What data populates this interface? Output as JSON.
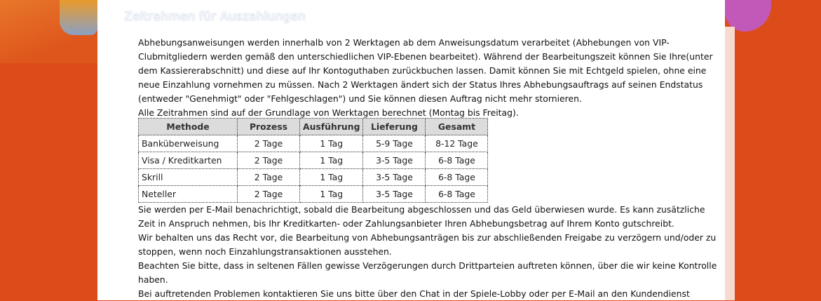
{
  "title": "Zeitrahmen für Auszahlungen",
  "intro": [
    "Abhebungsanweisungen werden innerhalb von 2 Werktagen ab dem Anweisungsdatum verarbeitet (Abhebungen von VIP-Clubmitgliedern werden gemäß den unterschiedlichen VIP-Ebenen bearbeitet). Während der Bearbeitungszeit können Sie Ihre(unter dem Kassiererabschnitt) und diese auf Ihr Kontoguthaben zurückbuchen lassen. Damit können Sie mit Echtgeld spielen, ohne eine neue Einzahlung vornehmen zu müssen. Nach 2 Werktagen ändert sich der Status Ihres Abhebungsauftrags auf seinen Endstatus (entweder \"Genehmigt\" oder \"Fehlgeschlagen\") und Sie können diesen Auftrag nicht mehr stornieren.",
    "Alle Zeitrahmen sind auf der Grundlage von Werktagen berechnet (Montag bis Freitag)."
  ],
  "table": {
    "headers": [
      "Methode",
      "Prozess",
      "Ausführung",
      "Lieferung",
      "Gesamt"
    ],
    "rows": [
      [
        "Banküberweisung",
        "2 Tage",
        "1 Tag",
        "5-9 Tage",
        "8-12 Tage"
      ],
      [
        "Visa / Kreditkarten",
        "2 Tage",
        "1 Tag",
        "3-5 Tage",
        "6-8 Tage"
      ],
      [
        "Skrill",
        "2 Tage",
        "1 Tag",
        "3-5 Tage",
        "6-8 Tage"
      ],
      [
        "Neteller",
        "2 Tage",
        "1 Tag",
        "3-5 Tage",
        "6-8 Tage"
      ]
    ]
  },
  "outro": [
    "Sie werden per E-Mail benachrichtigt, sobald die Bearbeitung abgeschlossen und das Geld überwiesen wurde. Es kann zusätzliche Zeit in Anspruch nehmen, bis Ihr Kreditkarten- oder Zahlungsanbieter Ihren Abhebungsbetrag auf Ihrem Konto gutschreibt.",
    "Wir behalten uns das Recht vor, die Bearbeitung von Abhebungsanträgen bis zur abschließenden Freigabe zu verzögern und/oder zu stoppen, wenn noch Einzahlungstransaktionen ausstehen.",
    "Beachten Sie bitte, dass in seltenen Fällen gewisse Verzögerungen durch Drittparteien auftreten können, über die wir keine Kontrolle haben.",
    "Bei auftretenden Problemen kontaktieren Sie uns bitte über den Chat in der Spiele-Lobby oder per E-Mail an den Kundendienst"
  ],
  "colors": {
    "background": "#dc4c1a",
    "panel": "#ffffff",
    "table_header": "#dcdcdc"
  }
}
